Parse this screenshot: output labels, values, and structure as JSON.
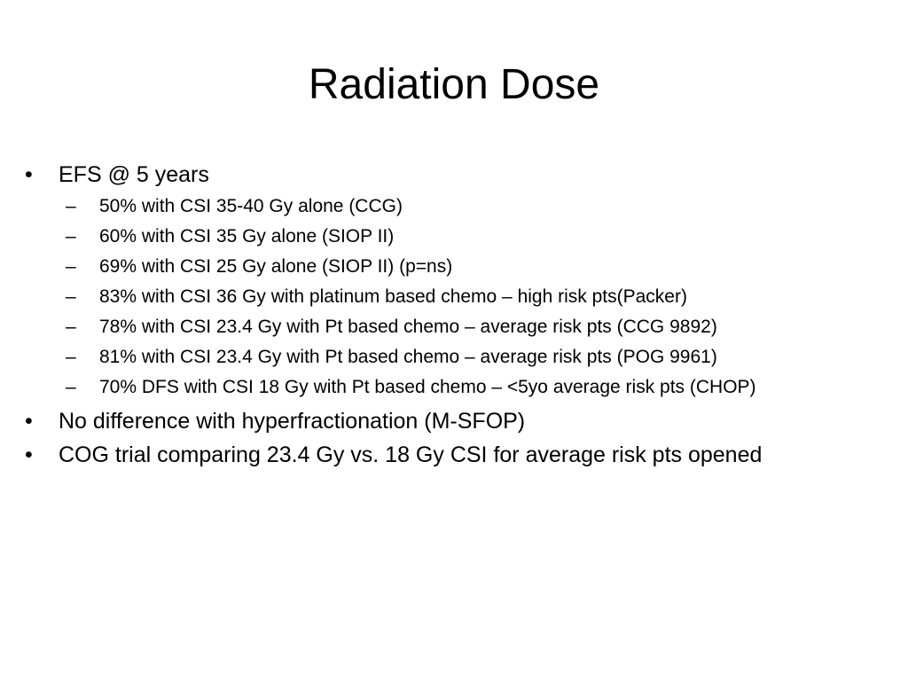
{
  "slide": {
    "title": "Radiation Dose",
    "bullet_glyph": "•",
    "dash_glyph": "–",
    "items": [
      {
        "text": "EFS @ 5 years",
        "subitems": [
          "50% with CSI 35-40 Gy alone (CCG)",
          "60% with CSI 35 Gy alone (SIOP II)",
          "69% with CSI 25 Gy alone (SIOP II) (p=ns)",
          "83% with CSI 36 Gy with platinum based chemo – high risk pts(Packer)",
          "78% with CSI 23.4 Gy with Pt based chemo – average risk pts (CCG 9892)",
          "81% with CSI 23.4 Gy with Pt based chemo – average risk pts (POG 9961)",
          "70% DFS with CSI 18 Gy with Pt based chemo – <5yo average risk pts (CHOP)"
        ]
      },
      {
        "text": "No difference with hyperfractionation (M-SFOP)",
        "subitems": []
      },
      {
        "text": "COG trial comparing 23.4 Gy vs. 18 Gy CSI for average risk pts opened",
        "subitems": []
      }
    ]
  }
}
